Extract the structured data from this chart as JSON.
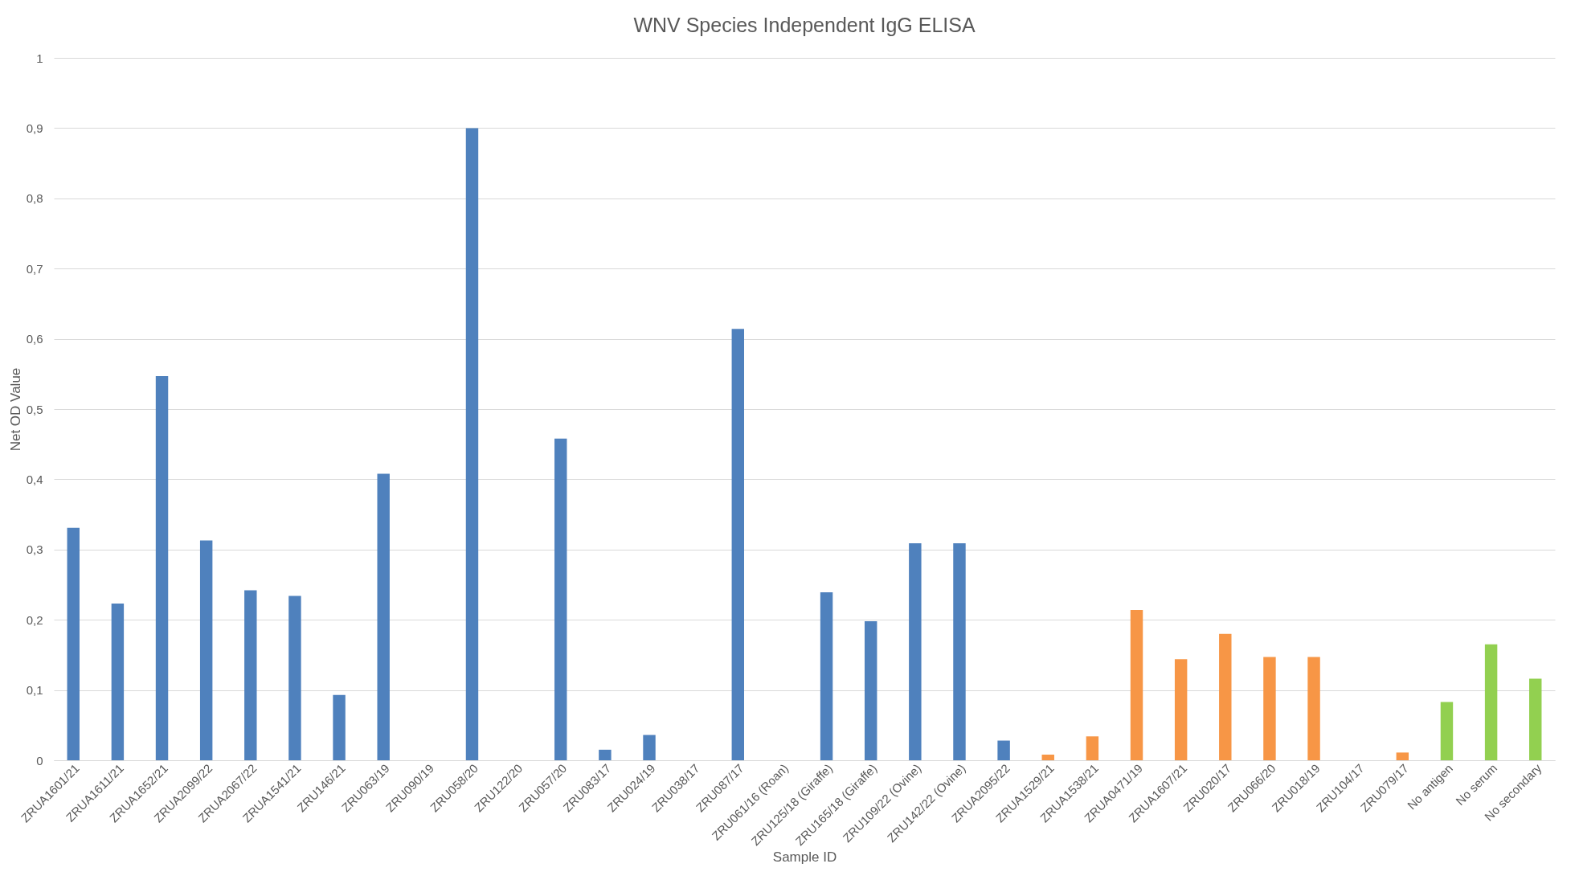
{
  "chart_data": {
    "type": "bar",
    "title": "WNV Species Independent IgG ELISA",
    "xlabel": "Sample ID",
    "ylabel": "Net OD Value",
    "categories": [
      "ZRUA1601/21",
      "ZRUA1611/21",
      "ZRUA1652/21",
      "ZRUA2099/22",
      "ZRUA2067/22",
      "ZRUA1541/21",
      "ZRU146/21",
      "ZRU063/19",
      "ZRU090/19",
      "ZRU058/20",
      "ZRU122/20",
      "ZRU057/20",
      "ZRU083/17",
      "ZRU024/19",
      "ZRU038/17",
      "ZRU087/17",
      "ZRU061/16 (Roan)",
      "ZRU125/18 (Giraffe)",
      "ZRU165/18 (Giraffe)",
      "ZRU109/22 (Ovine)",
      "ZRU142/22 (Ovine)",
      "ZRUA2095/22",
      "ZRUA1529/21",
      "ZRUA1538/21",
      "ZRUA0471/19",
      "ZRUA1607/21",
      "ZRU020/17",
      "ZRU066/20",
      "ZRU018/19",
      "ZRU104/17",
      "ZRU079/17",
      "No antigen",
      "No serum",
      "No secondary"
    ],
    "values": [
      0.331,
      0.223,
      0.547,
      0.313,
      0.242,
      0.234,
      0.093,
      0.408,
      0,
      0.9,
      0,
      0.458,
      0.015,
      0.036,
      0,
      0.614,
      0,
      0.239,
      0.198,
      0.309,
      0.309,
      0.028,
      0.008,
      0.034,
      0.214,
      0.144,
      0.18,
      0.147,
      0.147,
      0,
      0.011,
      0.083,
      0.165,
      0.116
    ],
    "colors": [
      "#4f81bd",
      "#4f81bd",
      "#4f81bd",
      "#4f81bd",
      "#4f81bd",
      "#4f81bd",
      "#4f81bd",
      "#4f81bd",
      "#4f81bd",
      "#4f81bd",
      "#4f81bd",
      "#4f81bd",
      "#4f81bd",
      "#4f81bd",
      "#4f81bd",
      "#4f81bd",
      "#4f81bd",
      "#4f81bd",
      "#4f81bd",
      "#4f81bd",
      "#4f81bd",
      "#4f81bd",
      "#f79646",
      "#f79646",
      "#f79646",
      "#f79646",
      "#f79646",
      "#f79646",
      "#f79646",
      "#f79646",
      "#f79646",
      "#92d050",
      "#92d050",
      "#92d050"
    ],
    "ylim": [
      0,
      1
    ],
    "yticks": [
      0,
      {
        "value": 0.1,
        "label": "0,1"
      },
      {
        "value": 0.2,
        "label": "0,2"
      },
      {
        "value": 0.3,
        "label": "0,3"
      },
      {
        "value": 0.4,
        "label": "0,4"
      },
      {
        "value": 0.5,
        "label": "0,5"
      },
      {
        "value": 0.6,
        "label": "0,6"
      },
      {
        "value": 0.7,
        "label": "0,7"
      },
      {
        "value": 0.8,
        "label": "0,8"
      },
      {
        "value": 0.9,
        "label": "0,9"
      },
      1
    ],
    "grid": "y"
  }
}
